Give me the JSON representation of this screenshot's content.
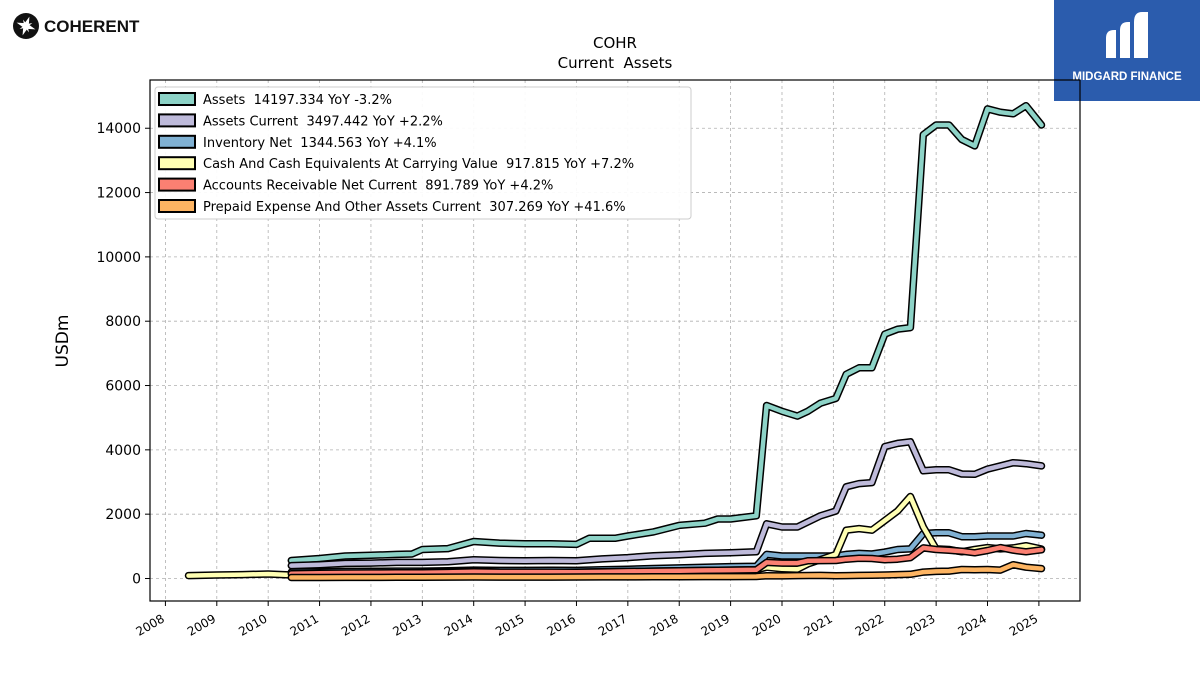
{
  "header": {
    "company_logo_text": "COHERENT",
    "brand_logo_text": "MIDGARD FINANCE"
  },
  "colors": {
    "assets": "#8dd3c7",
    "assets_current": "#bebada",
    "inventory": "#80b1d3",
    "cash": "#ffffb3",
    "receivables": "#fb8072",
    "prepaid": "#fdb462",
    "brand_bg": "#2b5cad"
  },
  "chart_data": {
    "type": "line",
    "title": "COHR",
    "subtitle": "Current  Assets",
    "ylabel": "USDm",
    "xlabel": "",
    "xlim": [
      2007.7,
      2025.8
    ],
    "ylim": [
      -700,
      15500
    ],
    "yticks": [
      0,
      2000,
      4000,
      6000,
      8000,
      10000,
      12000,
      14000
    ],
    "ytick_labels": [
      "0",
      "2000",
      "4000",
      "6000",
      "8000",
      "10000",
      "12000",
      "14000"
    ],
    "xticks": [
      2008,
      2009,
      2010,
      2011,
      2012,
      2013,
      2014,
      2015,
      2016,
      2017,
      2018,
      2019,
      2020,
      2021,
      2022,
      2023,
      2024,
      2025
    ],
    "xtick_labels": [
      "2008",
      "2009",
      "2010",
      "2011",
      "2012",
      "2013",
      "2014",
      "2015",
      "2016",
      "2017",
      "2018",
      "2019",
      "2020",
      "2021",
      "2022",
      "2023",
      "2024",
      "2025"
    ],
    "grid": true,
    "legend_position": "top-left",
    "series": [
      {
        "name": "Assets",
        "legend": "Assets  14197.334 YoY -3.2%",
        "color_key": "assets",
        "points": [
          [
            2010.45,
            560
          ],
          [
            2011,
            620
          ],
          [
            2011.5,
            700
          ],
          [
            2012,
            720
          ],
          [
            2012.5,
            750
          ],
          [
            2012.8,
            760
          ],
          [
            2013,
            900
          ],
          [
            2013.5,
            930
          ],
          [
            2014,
            1150
          ],
          [
            2014.5,
            1100
          ],
          [
            2015,
            1080
          ],
          [
            2015.5,
            1080
          ],
          [
            2016,
            1060
          ],
          [
            2016.25,
            1250
          ],
          [
            2016.75,
            1250
          ],
          [
            2017,
            1320
          ],
          [
            2017.5,
            1450
          ],
          [
            2018,
            1650
          ],
          [
            2018.5,
            1720
          ],
          [
            2018.75,
            1850
          ],
          [
            2019,
            1850
          ],
          [
            2019.25,
            1900
          ],
          [
            2019.5,
            1950
          ],
          [
            2019.7,
            5380
          ],
          [
            2020,
            5200
          ],
          [
            2020.3,
            5050
          ],
          [
            2020.5,
            5200
          ],
          [
            2020.75,
            5450
          ],
          [
            2021.05,
            5600
          ],
          [
            2021.25,
            6350
          ],
          [
            2021.5,
            6550
          ],
          [
            2021.75,
            6550
          ],
          [
            2022,
            7600
          ],
          [
            2022.25,
            7750
          ],
          [
            2022.5,
            7800
          ],
          [
            2022.75,
            13800
          ],
          [
            2023,
            14100
          ],
          [
            2023.25,
            14100
          ],
          [
            2023.5,
            13650
          ],
          [
            2023.75,
            13450
          ],
          [
            2024,
            14600
          ],
          [
            2024.25,
            14500
          ],
          [
            2024.5,
            14450
          ],
          [
            2024.75,
            14700
          ],
          [
            2025.05,
            14100
          ]
        ]
      },
      {
        "name": "Assets Current",
        "legend": "Assets Current  3497.442 YoY +2.2%",
        "color_key": "assets_current",
        "points": [
          [
            2010.45,
            400
          ],
          [
            2011,
            430
          ],
          [
            2011.5,
            470
          ],
          [
            2012,
            480
          ],
          [
            2012.5,
            500
          ],
          [
            2013,
            500
          ],
          [
            2013.5,
            520
          ],
          [
            2014,
            580
          ],
          [
            2014.5,
            560
          ],
          [
            2015,
            550
          ],
          [
            2015.5,
            560
          ],
          [
            2016,
            550
          ],
          [
            2016.5,
            610
          ],
          [
            2017,
            650
          ],
          [
            2017.5,
            710
          ],
          [
            2018,
            740
          ],
          [
            2018.5,
            780
          ],
          [
            2019,
            800
          ],
          [
            2019.5,
            830
          ],
          [
            2019.7,
            1700
          ],
          [
            2020,
            1600
          ],
          [
            2020.3,
            1600
          ],
          [
            2020.75,
            1950
          ],
          [
            2021.05,
            2100
          ],
          [
            2021.25,
            2850
          ],
          [
            2021.5,
            2950
          ],
          [
            2021.75,
            2980
          ],
          [
            2022,
            4100
          ],
          [
            2022.25,
            4200
          ],
          [
            2022.5,
            4250
          ],
          [
            2022.75,
            3350
          ],
          [
            2023,
            3380
          ],
          [
            2023.25,
            3380
          ],
          [
            2023.5,
            3250
          ],
          [
            2023.75,
            3240
          ],
          [
            2024,
            3400
          ],
          [
            2024.25,
            3500
          ],
          [
            2024.5,
            3600
          ],
          [
            2024.75,
            3570
          ],
          [
            2025.05,
            3500
          ]
        ]
      },
      {
        "name": "Inventory Net",
        "legend": "Inventory Net  1344.563 YoY +4.1%",
        "color_key": "inventory",
        "points": [
          [
            2010.45,
            200
          ],
          [
            2011,
            210
          ],
          [
            2011.5,
            220
          ],
          [
            2012,
            225
          ],
          [
            2012.5,
            230
          ],
          [
            2013,
            230
          ],
          [
            2013.5,
            240
          ],
          [
            2014,
            260
          ],
          [
            2014.5,
            250
          ],
          [
            2015,
            250
          ],
          [
            2015.5,
            255
          ],
          [
            2016,
            250
          ],
          [
            2016.5,
            270
          ],
          [
            2017,
            290
          ],
          [
            2017.5,
            310
          ],
          [
            2018,
            330
          ],
          [
            2018.5,
            350
          ],
          [
            2019,
            370
          ],
          [
            2019.5,
            380
          ],
          [
            2019.7,
            750
          ],
          [
            2020,
            700
          ],
          [
            2020.5,
            700
          ],
          [
            2021.05,
            700
          ],
          [
            2021.25,
            750
          ],
          [
            2021.5,
            780
          ],
          [
            2021.75,
            760
          ],
          [
            2022,
            820
          ],
          [
            2022.25,
            900
          ],
          [
            2022.5,
            920
          ],
          [
            2022.75,
            1400
          ],
          [
            2023,
            1420
          ],
          [
            2023.25,
            1420
          ],
          [
            2023.5,
            1300
          ],
          [
            2023.75,
            1300
          ],
          [
            2024,
            1320
          ],
          [
            2024.25,
            1320
          ],
          [
            2024.5,
            1320
          ],
          [
            2024.75,
            1400
          ],
          [
            2025.05,
            1345
          ]
        ]
      },
      {
        "name": "Cash And Cash Equivalents At Carrying Value",
        "legend": "Cash And Cash Equivalents At Carrying Value  917.815 YoY +7.2%",
        "color_key": "cash",
        "points": [
          [
            2008.45,
            90
          ],
          [
            2009,
            110
          ],
          [
            2009.5,
            120
          ],
          [
            2010,
            140
          ],
          [
            2010.45,
            110
          ],
          [
            2011,
            120
          ],
          [
            2011.5,
            140
          ],
          [
            2012,
            160
          ],
          [
            2012.5,
            170
          ],
          [
            2013,
            190
          ],
          [
            2013.5,
            210
          ],
          [
            2014,
            230
          ],
          [
            2014.5,
            200
          ],
          [
            2015,
            190
          ],
          [
            2015.5,
            190
          ],
          [
            2016,
            200
          ],
          [
            2016.5,
            210
          ],
          [
            2017,
            220
          ],
          [
            2017.5,
            230
          ],
          [
            2018,
            240
          ],
          [
            2018.5,
            250
          ],
          [
            2019,
            260
          ],
          [
            2019.5,
            270
          ],
          [
            2019.7,
            350
          ],
          [
            2020,
            300
          ],
          [
            2020.3,
            290
          ],
          [
            2020.5,
            450
          ],
          [
            2021.05,
            750
          ],
          [
            2021.25,
            1500
          ],
          [
            2021.5,
            1550
          ],
          [
            2021.75,
            1500
          ],
          [
            2022,
            1800
          ],
          [
            2022.25,
            2100
          ],
          [
            2022.5,
            2550
          ],
          [
            2022.75,
            1600
          ],
          [
            2023,
            920
          ],
          [
            2023.25,
            900
          ],
          [
            2023.5,
            830
          ],
          [
            2023.75,
            900
          ],
          [
            2024,
            960
          ],
          [
            2024.25,
            920
          ],
          [
            2024.5,
            950
          ],
          [
            2024.75,
            1020
          ],
          [
            2025.05,
            918
          ]
        ]
      },
      {
        "name": "Accounts Receivable Net Current",
        "legend": "Accounts Receivable Net Current  891.789 YoY +4.2%",
        "color_key": "receivables",
        "points": [
          [
            2010.45,
            150
          ],
          [
            2011,
            160
          ],
          [
            2011.5,
            170
          ],
          [
            2012,
            175
          ],
          [
            2012.5,
            180
          ],
          [
            2013,
            180
          ],
          [
            2013.5,
            190
          ],
          [
            2014,
            210
          ],
          [
            2014.5,
            200
          ],
          [
            2015,
            200
          ],
          [
            2015.5,
            200
          ],
          [
            2016,
            195
          ],
          [
            2016.5,
            205
          ],
          [
            2017,
            220
          ],
          [
            2017.5,
            230
          ],
          [
            2018,
            240
          ],
          [
            2018.5,
            250
          ],
          [
            2019,
            260
          ],
          [
            2019.5,
            270
          ],
          [
            2019.7,
            500
          ],
          [
            2020,
            480
          ],
          [
            2020.3,
            480
          ],
          [
            2020.5,
            550
          ],
          [
            2021.05,
            560
          ],
          [
            2021.25,
            600
          ],
          [
            2021.5,
            630
          ],
          [
            2021.75,
            620
          ],
          [
            2022,
            580
          ],
          [
            2022.25,
            600
          ],
          [
            2022.5,
            650
          ],
          [
            2022.75,
            950
          ],
          [
            2023,
            900
          ],
          [
            2023.25,
            880
          ],
          [
            2023.5,
            850
          ],
          [
            2023.75,
            800
          ],
          [
            2024,
            870
          ],
          [
            2024.25,
            960
          ],
          [
            2024.5,
            880
          ],
          [
            2024.75,
            830
          ],
          [
            2025.05,
            892
          ]
        ]
      },
      {
        "name": "Prepaid Expense And Other Assets Current",
        "legend": "Prepaid Expense And Other Assets Current  307.269 YoY +41.6%",
        "color_key": "prepaid",
        "points": [
          [
            2010.45,
            30
          ],
          [
            2011,
            32
          ],
          [
            2011.5,
            35
          ],
          [
            2012,
            35
          ],
          [
            2012.5,
            38
          ],
          [
            2013,
            40
          ],
          [
            2013.5,
            42
          ],
          [
            2014,
            45
          ],
          [
            2014.5,
            42
          ],
          [
            2015,
            42
          ],
          [
            2015.5,
            44
          ],
          [
            2016,
            45
          ],
          [
            2016.5,
            48
          ],
          [
            2017,
            50
          ],
          [
            2017.5,
            52
          ],
          [
            2018,
            55
          ],
          [
            2018.5,
            58
          ],
          [
            2019,
            60
          ],
          [
            2019.5,
            62
          ],
          [
            2019.7,
            85
          ],
          [
            2020,
            80
          ],
          [
            2020.3,
            90
          ],
          [
            2020.75,
            95
          ],
          [
            2021.05,
            85
          ],
          [
            2021.25,
            90
          ],
          [
            2021.5,
            95
          ],
          [
            2021.75,
            100
          ],
          [
            2022,
            110
          ],
          [
            2022.25,
            120
          ],
          [
            2022.5,
            130
          ],
          [
            2022.75,
            200
          ],
          [
            2023,
            220
          ],
          [
            2023.25,
            230
          ],
          [
            2023.5,
            280
          ],
          [
            2023.75,
            270
          ],
          [
            2024,
            280
          ],
          [
            2024.25,
            260
          ],
          [
            2024.5,
            430
          ],
          [
            2024.75,
            350
          ],
          [
            2025.05,
            307
          ]
        ]
      }
    ]
  }
}
